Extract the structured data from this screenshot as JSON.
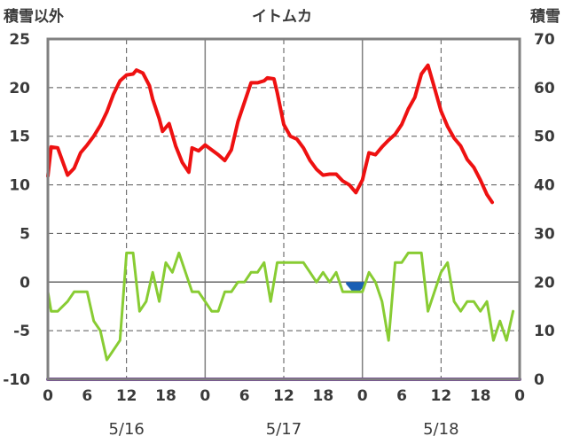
{
  "chart_data": {
    "type": "line",
    "title": "イトムカ",
    "left_axis_label": "積雪以外",
    "right_axis_label": "積雪",
    "ylim_left": [
      -10,
      25
    ],
    "yticks_left": [
      -10,
      -5,
      0,
      5,
      10,
      15,
      20,
      25
    ],
    "ylim_right": [
      0,
      70
    ],
    "yticks_right": [
      0,
      10,
      20,
      30,
      40,
      50,
      60,
      70
    ],
    "xlim_hours": [
      0,
      72
    ],
    "x_tick_labels": [
      "0",
      "6",
      "12",
      "18",
      "0",
      "6",
      "12",
      "18",
      "0",
      "6",
      "12",
      "18",
      "0"
    ],
    "date_labels": [
      "5/16",
      "5/17",
      "5/18"
    ],
    "colors": {
      "temperature": "#ee1111",
      "wind": "#88cc33",
      "precipitation": "#1a5fb4",
      "snow_depth": "#7030a0",
      "frame": "#808080",
      "grid": "#555555"
    },
    "series": [
      {
        "axis": "left",
        "values": [
          [
            0,
            10.9
          ],
          [
            0.5,
            13.9
          ],
          [
            1.5,
            13.8
          ],
          [
            3,
            11.0
          ],
          [
            4,
            11.7
          ],
          [
            5,
            13.3
          ],
          [
            6,
            14.1
          ],
          [
            7,
            15.0
          ],
          [
            8,
            16.1
          ],
          [
            9,
            17.5
          ],
          [
            10,
            19.3
          ],
          [
            11,
            20.7
          ],
          [
            12,
            21.3
          ],
          [
            13,
            21.4
          ],
          [
            13.5,
            21.8
          ],
          [
            14.5,
            21.5
          ],
          [
            15.5,
            20.2
          ],
          [
            16,
            18.8
          ],
          [
            17,
            16.8
          ],
          [
            17.5,
            15.5
          ],
          [
            18.5,
            16.3
          ],
          [
            19.5,
            14.0
          ],
          [
            20.5,
            12.3
          ],
          [
            21.5,
            11.3
          ],
          [
            22,
            13.8
          ],
          [
            23,
            13.5
          ],
          [
            24,
            14.1
          ],
          [
            25,
            13.6
          ],
          [
            26,
            13.1
          ],
          [
            27,
            12.5
          ],
          [
            28,
            13.6
          ],
          [
            29,
            16.5
          ],
          [
            30,
            18.5
          ],
          [
            31,
            20.5
          ],
          [
            32,
            20.5
          ],
          [
            33,
            20.7
          ],
          [
            33.5,
            21.0
          ],
          [
            34.5,
            20.9
          ],
          [
            35,
            19.5
          ],
          [
            36,
            16.2
          ],
          [
            37,
            15.0
          ],
          [
            38,
            14.7
          ],
          [
            39,
            13.8
          ],
          [
            40,
            12.5
          ],
          [
            41,
            11.6
          ],
          [
            42,
            11.0
          ],
          [
            43,
            11.1
          ],
          [
            44,
            11.1
          ],
          [
            45,
            10.4
          ],
          [
            46,
            10.0
          ],
          [
            47,
            9.2
          ],
          [
            48,
            10.5
          ],
          [
            49,
            13.3
          ],
          [
            50,
            13.1
          ],
          [
            51,
            13.9
          ],
          [
            52,
            14.6
          ],
          [
            53,
            15.2
          ],
          [
            54,
            16.2
          ],
          [
            55,
            17.8
          ],
          [
            56,
            19.0
          ],
          [
            57,
            21.4
          ],
          [
            58,
            22.3
          ],
          [
            59,
            20.0
          ],
          [
            60,
            17.6
          ],
          [
            61,
            16.0
          ],
          [
            62,
            14.8
          ],
          [
            63,
            14.0
          ],
          [
            64,
            12.6
          ],
          [
            65,
            11.8
          ],
          [
            66,
            10.5
          ],
          [
            67,
            9.0
          ],
          [
            67.8,
            8.2
          ]
        ]
      },
      {
        "axis": "left",
        "values": [
          [
            0,
            -1.0
          ],
          [
            0.5,
            -3.0
          ],
          [
            1.5,
            -3.0
          ],
          [
            3,
            -2.0
          ],
          [
            4,
            -1.0
          ],
          [
            5,
            -1.0
          ],
          [
            6,
            -1.0
          ],
          [
            7,
            -4.0
          ],
          [
            8,
            -5.0
          ],
          [
            9,
            -8.0
          ],
          [
            10,
            -7.0
          ],
          [
            11,
            -6.0
          ],
          [
            12,
            3.0
          ],
          [
            13,
            3.0
          ],
          [
            14,
            -3.0
          ],
          [
            15,
            -2.0
          ],
          [
            16,
            1.0
          ],
          [
            17,
            -2.0
          ],
          [
            18,
            2.0
          ],
          [
            19,
            1.0
          ],
          [
            20,
            3.0
          ],
          [
            21,
            1.0
          ],
          [
            22,
            -1.0
          ],
          [
            23,
            -1.0
          ],
          [
            24,
            -2.0
          ],
          [
            25,
            -3.0
          ],
          [
            26,
            -3.0
          ],
          [
            27,
            -1.0
          ],
          [
            28,
            -1.0
          ],
          [
            29,
            0.0
          ],
          [
            30,
            0.0
          ],
          [
            31,
            1.0
          ],
          [
            32,
            1.0
          ],
          [
            33,
            2.0
          ],
          [
            34,
            -2.0
          ],
          [
            35,
            2.0
          ],
          [
            36,
            2.0
          ],
          [
            37,
            2.0
          ],
          [
            38,
            2.0
          ],
          [
            39,
            2.0
          ],
          [
            40,
            1.0
          ],
          [
            41,
            0.0
          ],
          [
            42,
            1.0
          ],
          [
            43,
            0.0
          ],
          [
            44,
            1.0
          ],
          [
            45,
            -1.0
          ],
          [
            46,
            -1.0
          ],
          [
            47,
            -1.0
          ],
          [
            48,
            -1.0
          ],
          [
            49,
            1.0
          ],
          [
            50,
            0.0
          ],
          [
            51,
            -2.0
          ],
          [
            52,
            -6.0
          ],
          [
            53,
            2.0
          ],
          [
            54,
            2.0
          ],
          [
            55,
            3.0
          ],
          [
            56,
            3.0
          ],
          [
            57,
            3.0
          ],
          [
            58,
            -3.0
          ],
          [
            59,
            -1.0
          ],
          [
            60,
            1.0
          ],
          [
            61,
            2.0
          ],
          [
            62,
            -2.0
          ],
          [
            63,
            -3.0
          ],
          [
            64,
            -2.0
          ],
          [
            65,
            -2.0
          ],
          [
            66,
            -3.0
          ],
          [
            67,
            -2.0
          ],
          [
            68,
            -6.0
          ],
          [
            69,
            -4.0
          ],
          [
            70,
            -6.0
          ],
          [
            71,
            -3.0
          ]
        ]
      },
      {
        "axis": "left",
        "type": "area",
        "values": [
          [
            45.5,
            -0.2
          ],
          [
            46.5,
            -1.0
          ],
          [
            47.5,
            -1.0
          ],
          [
            48.5,
            -0.2
          ]
        ]
      },
      {
        "axis": "right",
        "values": [
          [
            0,
            0
          ],
          [
            72,
            0
          ]
        ]
      }
    ]
  }
}
